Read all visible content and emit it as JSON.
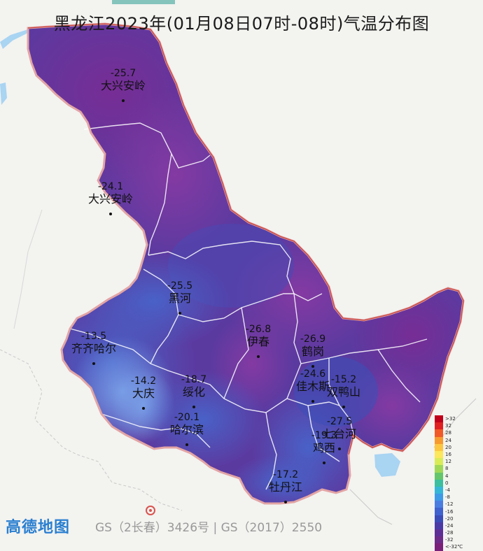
{
  "title": "黑龙江2023年(01月08日07时-08时)气温分布图",
  "stations": [
    {
      "name": "大兴安岭",
      "value": "-25.7"
    },
    {
      "name": "大兴安岭",
      "value": "-24.1"
    },
    {
      "name": "黑河",
      "value": "-25.5"
    },
    {
      "name": "齐齐哈尔",
      "value": "-13.5"
    },
    {
      "name": "伊春",
      "value": "-26.8"
    },
    {
      "name": "鹤岗",
      "value": "-26.9"
    },
    {
      "name": "大庆",
      "value": "-14.2"
    },
    {
      "name": "绥化",
      "value": "-18.7"
    },
    {
      "name": "佳木斯",
      "value": "-24.6"
    },
    {
      "name": "双鸭山",
      "value": "-15.2"
    },
    {
      "name": "哈尔滨",
      "value": "-20.1"
    },
    {
      "name": "七台河",
      "value": "-27.5"
    },
    {
      "name": "鸡西",
      "value": "-19.3"
    },
    {
      "name": "牡丹江",
      "value": "-17.2"
    }
  ],
  "legend": [
    {
      "label": ">32",
      "color": "#c0001a"
    },
    {
      "label": "32",
      "color": "#e02020"
    },
    {
      "label": "28",
      "color": "#f05a28"
    },
    {
      "label": "24",
      "color": "#f79a2e"
    },
    {
      "label": "20",
      "color": "#fcc640"
    },
    {
      "label": "16",
      "color": "#fde75a"
    },
    {
      "label": "12",
      "color": "#d9ec58"
    },
    {
      "label": "8",
      "color": "#9fd856"
    },
    {
      "label": "4",
      "color": "#63c66a"
    },
    {
      "label": "0",
      "color": "#3bbf9e"
    },
    {
      "label": "-4",
      "color": "#34b7d6"
    },
    {
      "label": "-8",
      "color": "#3d9ae6"
    },
    {
      "label": "-12",
      "color": "#4a7de0"
    },
    {
      "label": "-16",
      "color": "#3f62cf"
    },
    {
      "label": "-20",
      "color": "#3a4cb8"
    },
    {
      "label": "-24",
      "color": "#4a3aa6"
    },
    {
      "label": "-28",
      "color": "#5d2f96"
    },
    {
      "label": "-32",
      "color": "#6d2a88"
    },
    {
      "label": "<-32℃",
      "color": "#7a1f7a"
    }
  ],
  "footer": {
    "brand": "高德地图",
    "gs_text": "GS（2长春）3426号 | GS（2017）2550"
  },
  "colors": {
    "water": "#a9d4f2",
    "border": "#d9534f"
  }
}
